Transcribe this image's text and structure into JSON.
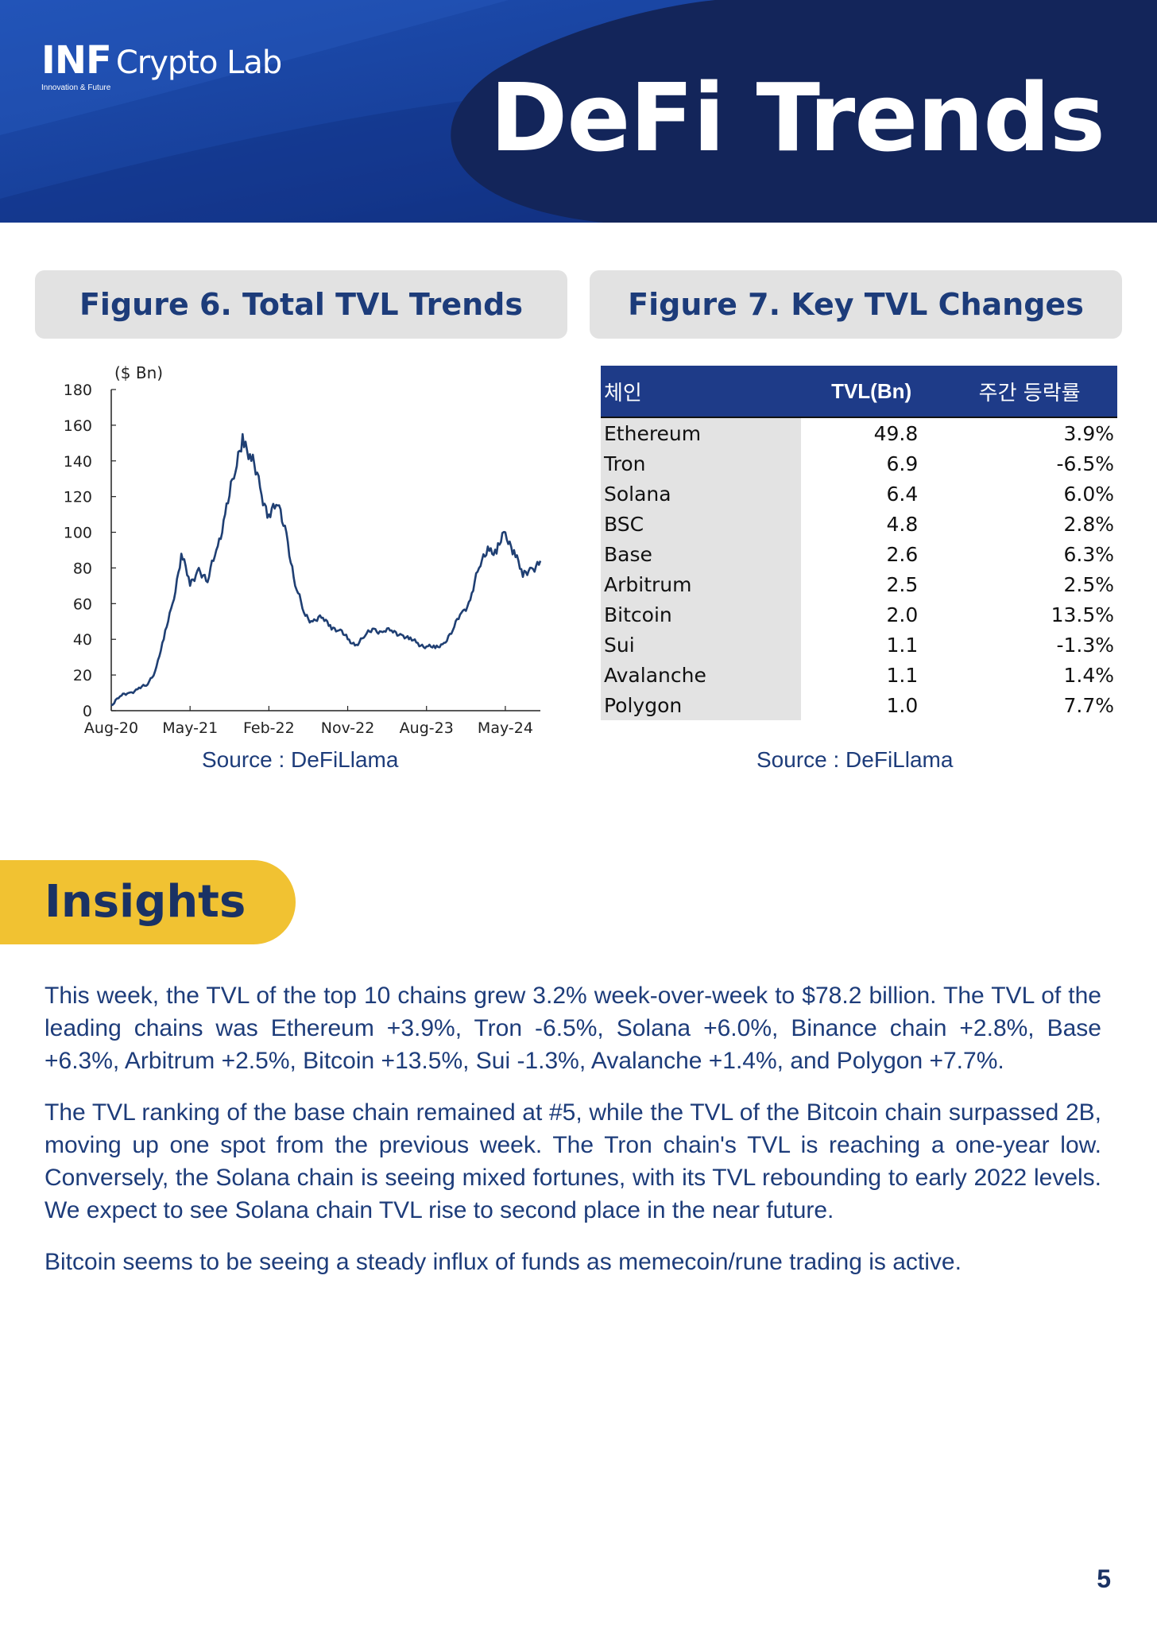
{
  "header": {
    "logo_main": "INF",
    "logo_sub": "Crypto Lab",
    "logo_tagline": "Innovation & Future",
    "title": "DeFi Trends"
  },
  "figure6": {
    "title": "Figure 6. Total TVL Trends",
    "source": "Source : DeFiLlama"
  },
  "figure7": {
    "title": "Figure 7. Key TVL Changes",
    "source": "Source : DeFiLlama",
    "columns": [
      "체인",
      "TVL(Bn)",
      "주간 등락률"
    ],
    "rows": [
      {
        "chain": "Ethereum",
        "tvl": "49.8",
        "change": "3.9%"
      },
      {
        "chain": "Tron",
        "tvl": "6.9",
        "change": "-6.5%"
      },
      {
        "chain": "Solana",
        "tvl": "6.4",
        "change": "6.0%"
      },
      {
        "chain": "BSC",
        "tvl": "4.8",
        "change": "2.8%"
      },
      {
        "chain": "Base",
        "tvl": "2.6",
        "change": "6.3%"
      },
      {
        "chain": "Arbitrum",
        "tvl": "2.5",
        "change": "2.5%"
      },
      {
        "chain": "Bitcoin",
        "tvl": "2.0",
        "change": "13.5%"
      },
      {
        "chain": "Sui",
        "tvl": "1.1",
        "change": "-1.3%"
      },
      {
        "chain": "Avalanche",
        "tvl": "1.1",
        "change": "1.4%"
      },
      {
        "chain": "Polygon",
        "tvl": "1.0",
        "change": "7.7%"
      }
    ]
  },
  "chart_data": {
    "type": "line",
    "title": "",
    "ylabel": "($ Bn)",
    "xlabel": "",
    "ylim": [
      0,
      180
    ],
    "y_ticks": [
      0,
      20,
      40,
      60,
      80,
      100,
      120,
      140,
      160,
      180
    ],
    "x_tick_labels": [
      "Aug-20",
      "May-21",
      "Feb-22",
      "Nov-22",
      "Aug-23",
      "May-24"
    ],
    "x_range_months": [
      "2020-08",
      "2024-09"
    ],
    "grid": false,
    "series": [
      {
        "color": "#1f3f73",
        "x": [
          "2020-08",
          "2020-09",
          "2020-10",
          "2020-11",
          "2020-12",
          "2021-01",
          "2021-02",
          "2021-03",
          "2021-04",
          "2021-05",
          "2021-06",
          "2021-07",
          "2021-08",
          "2021-09",
          "2021-10",
          "2021-11",
          "2021-12",
          "2022-01",
          "2022-02",
          "2022-03",
          "2022-04",
          "2022-05",
          "2022-06",
          "2022-07",
          "2022-08",
          "2022-09",
          "2022-10",
          "2022-11",
          "2022-12",
          "2023-01",
          "2023-02",
          "2023-03",
          "2023-04",
          "2023-05",
          "2023-06",
          "2023-07",
          "2023-08",
          "2023-09",
          "2023-10",
          "2023-11",
          "2023-12",
          "2024-01",
          "2024-02",
          "2024-03",
          "2024-04",
          "2024-05",
          "2024-06",
          "2024-07",
          "2024-08",
          "2024-09"
        ],
        "values": [
          3,
          8,
          10,
          12,
          14,
          22,
          40,
          60,
          88,
          70,
          80,
          72,
          90,
          110,
          130,
          155,
          140,
          125,
          110,
          115,
          100,
          70,
          55,
          50,
          52,
          48,
          45,
          40,
          37,
          42,
          46,
          44,
          45,
          43,
          40,
          38,
          36,
          35,
          38,
          45,
          55,
          62,
          80,
          92,
          88,
          100,
          90,
          75,
          80,
          84
        ]
      }
    ]
  },
  "insights": {
    "title": "Insights",
    "paragraphs": [
      "This week, the TVL of the top 10 chains grew 3.2% week-over-week to $78.2 billion. The TVL of the leading chains was Ethereum +3.9%, Tron -6.5%, Solana +6.0%, Binance chain +2.8%, Base +6.3%, Arbitrum +2.5%, Bitcoin +13.5%, Sui -1.3%, Avalanche +1.4%, and Polygon +7.7%.",
      "The TVL ranking of the base chain remained at #5, while the TVL of the Bitcoin chain surpassed 2B, moving up one spot from the previous week. The Tron chain's TVL is reaching a one-year low. Conversely, the Solana chain is seeing mixed fortunes, with its TVL rebounding to early 2022 levels. We expect to see Solana chain TVL rise to second place in the near future.",
      "Bitcoin seems to be seeing a steady influx of funds as memecoin/rune trading is active."
    ]
  },
  "page_number": "5",
  "colors": {
    "header_dark": "#13255a",
    "header_blue": "#1f4fae",
    "figure_title": "#1d3c7a",
    "insights_accent": "#f1c232",
    "table_header": "#1e3b88"
  }
}
